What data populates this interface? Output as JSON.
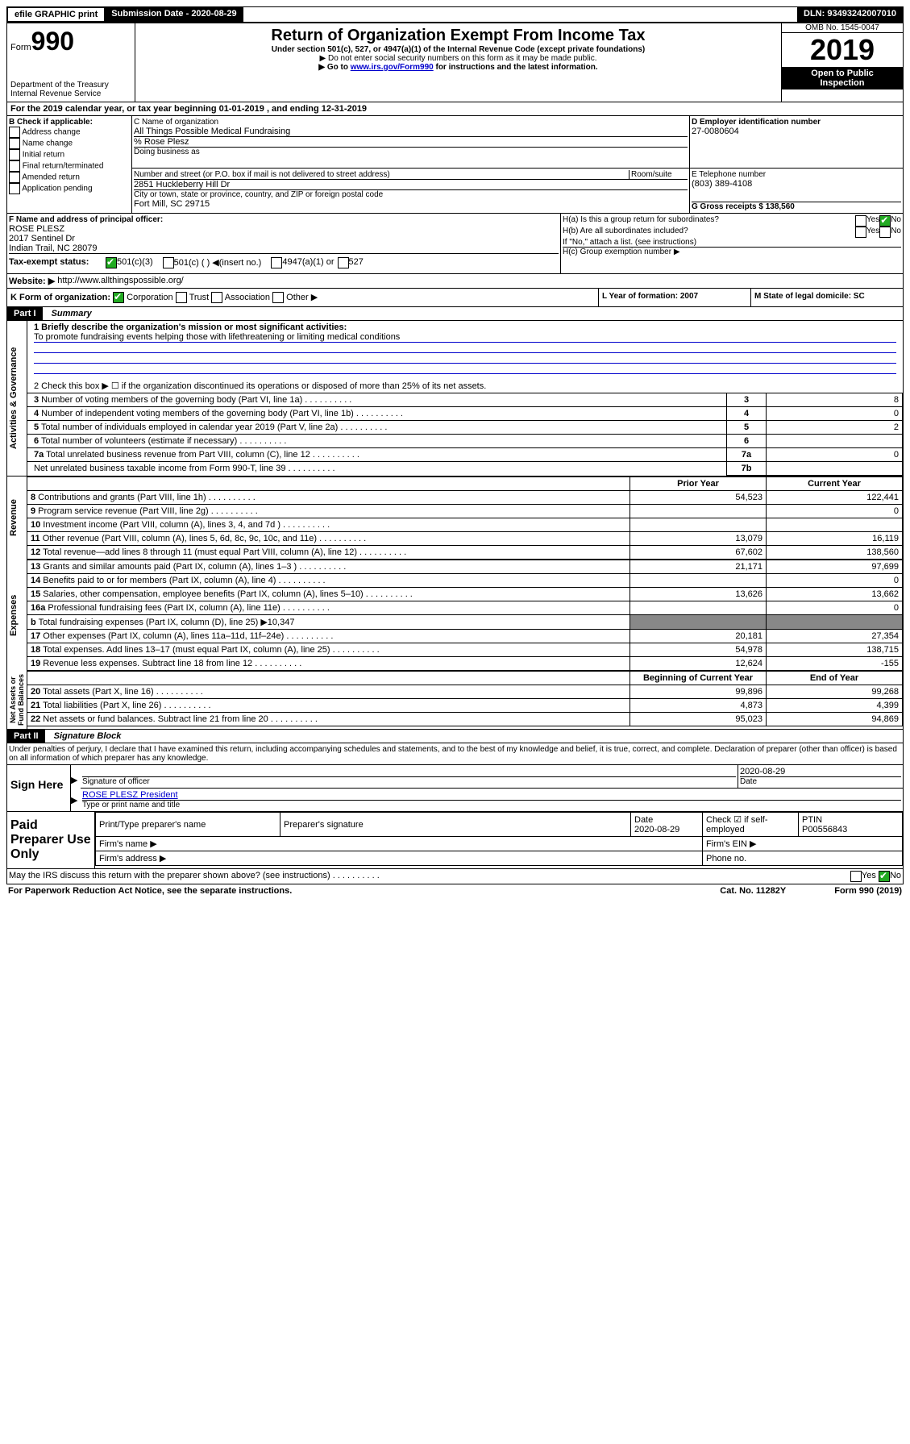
{
  "topbar": {
    "efile": "efile GRAPHIC print",
    "subdate_label": "Submission Date - 2020-08-29",
    "dln_label": "DLN: 93493242007010"
  },
  "header": {
    "form_label": "Form",
    "form_num": "990",
    "dept": "Department of the Treasury\nInternal Revenue Service",
    "title": "Return of Organization Exempt From Income Tax",
    "sub1": "Under section 501(c), 527, or 4947(a)(1) of the Internal Revenue Code (except private foundations)",
    "sub2": "▶ Do not enter social security numbers on this form as it may be made public.",
    "sub3a": "▶ Go to ",
    "sub3_link": "www.irs.gov/Form990",
    "sub3b": " for instructions and the latest information.",
    "omb": "OMB No. 1545-0047",
    "year": "2019",
    "open": "Open to Public Inspection"
  },
  "period": {
    "text_a": "For the 2019 calendar year, or tax year beginning ",
    "begin": "01-01-2019",
    "text_b": " , and ending ",
    "end": "12-31-2019"
  },
  "sectionB": {
    "label": "B Check if applicable:",
    "addr": "Address change",
    "name": "Name change",
    "initial": "Initial return",
    "final": "Final return/terminated",
    "amended": "Amended return",
    "app": "Application pending"
  },
  "sectionC": {
    "name_label": "C Name of organization",
    "org_name": "All Things Possible Medical Fundraising",
    "care_of": "% Rose Plesz",
    "dba_label": "Doing business as",
    "street_label": "Number and street (or P.O. box if mail is not delivered to street address)",
    "room_label": "Room/suite",
    "street": "2851 Huckleberry Hill Dr",
    "city_label": "City or town, state or province, country, and ZIP or foreign postal code",
    "city": "Fort Mill, SC  29715"
  },
  "sectionD": {
    "label": "D Employer identification number",
    "value": "27-0080604"
  },
  "sectionE": {
    "label": "E Telephone number",
    "value": "(803) 389-4108"
  },
  "sectionG": {
    "label": "G Gross receipts $ 138,560"
  },
  "sectionF": {
    "label": "F Name and address of principal officer:",
    "name": "ROSE PLESZ",
    "addr1": "2017 Sentinel Dr",
    "addr2": "Indian Trail, NC  28079"
  },
  "sectionH": {
    "a": "H(a)  Is this a group return for subordinates?",
    "b": "H(b)  Are all subordinates included?",
    "note": "If \"No,\" attach a list. (see instructions)",
    "c": "H(c)  Group exemption number ▶",
    "yes": "Yes",
    "no": "No"
  },
  "sectionI": {
    "label": "Tax-exempt status:",
    "c3": "501(c)(3)",
    "c": "501(c) (   ) ◀(insert no.)",
    "a1": "4947(a)(1) or",
    "s527": "527"
  },
  "sectionJ": {
    "label": "Website: ▶",
    "value": "http://www.allthingspossible.org/"
  },
  "sectionK": {
    "label": "K Form of organization:",
    "corp": "Corporation",
    "trust": "Trust",
    "assoc": "Association",
    "other": "Other ▶"
  },
  "sectionL": {
    "label": "L Year of formation: 2007"
  },
  "sectionM": {
    "label": "M State of legal domicile: SC"
  },
  "parts": {
    "p1": "Part I",
    "p1_title": "Summary",
    "p2": "Part II",
    "p2_title": "Signature Block"
  },
  "summary": {
    "line1": "1  Briefly describe the organization's mission or most significant activities:",
    "mission": "To promote fundraising events helping those with lifethreatening or limiting medical conditions",
    "line2": "2   Check this box ▶ ☐  if the organization discontinued its operations or disposed of more than 25% of its net assets.",
    "rows_top": [
      {
        "n": "3",
        "t": "Number of voting members of the governing body (Part VI, line 1a)",
        "box": "3",
        "v": "8"
      },
      {
        "n": "4",
        "t": "Number of independent voting members of the governing body (Part VI, line 1b)",
        "box": "4",
        "v": "0"
      },
      {
        "n": "5",
        "t": "Total number of individuals employed in calendar year 2019 (Part V, line 2a)",
        "box": "5",
        "v": "2"
      },
      {
        "n": "6",
        "t": "Total number of volunteers (estimate if necessary)",
        "box": "6",
        "v": ""
      },
      {
        "n": "7a",
        "t": "Total unrelated business revenue from Part VIII, column (C), line 12",
        "box": "7a",
        "v": "0"
      },
      {
        "n": "",
        "t": "Net unrelated business taxable income from Form 990-T, line 39",
        "box": "7b",
        "v": ""
      }
    ],
    "col_prior": "Prior Year",
    "col_current": "Current Year",
    "col_begin": "Beginning of Current Year",
    "col_end": "End of Year",
    "revenue": [
      {
        "n": "8",
        "t": "Contributions and grants (Part VIII, line 1h)",
        "p": "54,523",
        "c": "122,441"
      },
      {
        "n": "9",
        "t": "Program service revenue (Part VIII, line 2g)",
        "p": "",
        "c": "0"
      },
      {
        "n": "10",
        "t": "Investment income (Part VIII, column (A), lines 3, 4, and 7d )",
        "p": "",
        "c": ""
      },
      {
        "n": "11",
        "t": "Other revenue (Part VIII, column (A), lines 5, 6d, 8c, 9c, 10c, and 11e)",
        "p": "13,079",
        "c": "16,119"
      },
      {
        "n": "12",
        "t": "Total revenue—add lines 8 through 11 (must equal Part VIII, column (A), line 12)",
        "p": "67,602",
        "c": "138,560"
      }
    ],
    "expenses": [
      {
        "n": "13",
        "t": "Grants and similar amounts paid (Part IX, column (A), lines 1–3 )",
        "p": "21,171",
        "c": "97,699"
      },
      {
        "n": "14",
        "t": "Benefits paid to or for members (Part IX, column (A), line 4)",
        "p": "",
        "c": "0"
      },
      {
        "n": "15",
        "t": "Salaries, other compensation, employee benefits (Part IX, column (A), lines 5–10)",
        "p": "13,626",
        "c": "13,662"
      },
      {
        "n": "16a",
        "t": "Professional fundraising fees (Part IX, column (A), line 11e)",
        "p": "",
        "c": "0"
      },
      {
        "n": "b",
        "t": "Total fundraising expenses (Part IX, column (D), line 25) ▶10,347",
        "p": null,
        "c": null
      },
      {
        "n": "17",
        "t": "Other expenses (Part IX, column (A), lines 11a–11d, 11f–24e)",
        "p": "20,181",
        "c": "27,354"
      },
      {
        "n": "18",
        "t": "Total expenses. Add lines 13–17 (must equal Part IX, column (A), line 25)",
        "p": "54,978",
        "c": "138,715"
      },
      {
        "n": "19",
        "t": "Revenue less expenses. Subtract line 18 from line 12",
        "p": "12,624",
        "c": "-155"
      }
    ],
    "netassets": [
      {
        "n": "20",
        "t": "Total assets (Part X, line 16)",
        "p": "99,896",
        "c": "99,268"
      },
      {
        "n": "21",
        "t": "Total liabilities (Part X, line 26)",
        "p": "4,873",
        "c": "4,399"
      },
      {
        "n": "22",
        "t": "Net assets or fund balances. Subtract line 21 from line 20",
        "p": "95,023",
        "c": "94,869"
      }
    ]
  },
  "sidebar": {
    "act": "Activities & Governance",
    "rev": "Revenue",
    "exp": "Expenses",
    "net": "Net Assets or\nFund Balances"
  },
  "sig": {
    "declaration": "Under penalties of perjury, I declare that I have examined this return, including accompanying schedules and statements, and to the best of my knowledge and belief, it is true, correct, and complete. Declaration of preparer (other than officer) is based on all information of which preparer has any knowledge.",
    "sign_here": "Sign Here",
    "sig_officer": "Signature of officer",
    "date": "Date",
    "date_val": "2020-08-29",
    "name_title": "ROSE PLESZ President",
    "type_name": "Type or print name and title",
    "paid": "Paid Preparer Use Only",
    "prep_name": "Print/Type preparer's name",
    "prep_sig": "Preparer's signature",
    "prep_date": "Date\n2020-08-29",
    "check_self": "Check ☑ if self-employed",
    "ptin": "PTIN",
    "ptin_val": "P00556843",
    "firm_name": "Firm's name  ▶",
    "firm_ein": "Firm's EIN ▶",
    "firm_addr": "Firm's address ▶",
    "phone": "Phone no."
  },
  "footer": {
    "discuss": "May the IRS discuss this return with the preparer shown above? (see instructions)",
    "yes": "Yes",
    "no": "No",
    "paperwork": "For Paperwork Reduction Act Notice, see the separate instructions.",
    "cat": "Cat. No. 11282Y",
    "form": "Form 990 (2019)"
  }
}
